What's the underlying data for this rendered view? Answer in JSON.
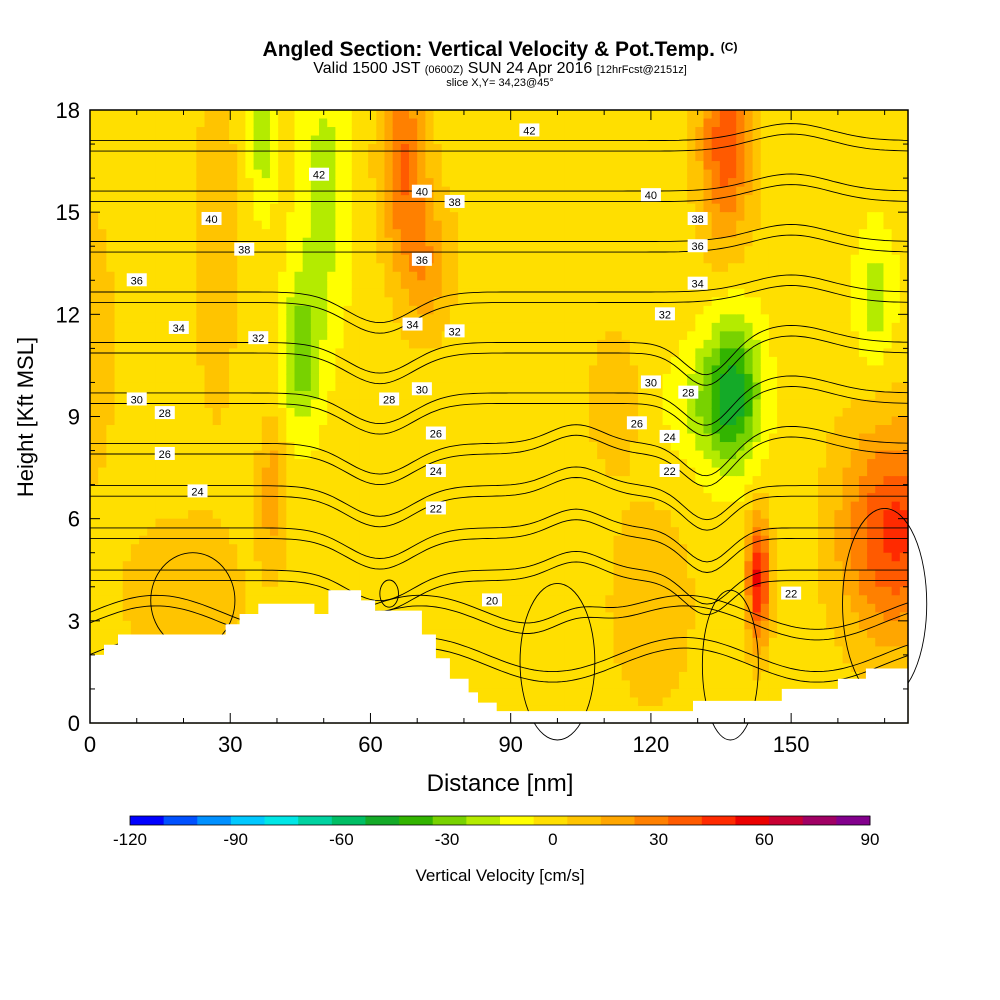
{
  "chart_data": {
    "type": "heatmap",
    "title": "Angled Section: Vertical Velocity & Pot.Temp.",
    "title_mark": "(C)",
    "subtitle_main_1": "Valid 1500 JST",
    "subtitle_small_1": "(0600Z)",
    "subtitle_main_2": "SUN 24 Apr 2016",
    "subtitle_small_2": "[12hrFcst@2151z]",
    "subtitle2": "slice X,Y= 34,23@45°",
    "xlabel": "Distance [nm]",
    "ylabel": "Height [Kft MSL]",
    "xlim": [
      0,
      175
    ],
    "ylim": [
      0,
      18
    ],
    "x_ticks": [
      0,
      30,
      60,
      90,
      120,
      150
    ],
    "y_ticks": [
      0,
      3,
      6,
      9,
      12,
      15,
      18
    ],
    "colorbar": {
      "label": "Vertical Velocity [cm/s]",
      "min": -120,
      "max": 90,
      "step": 10,
      "tick_labels": [
        -120,
        -90,
        -60,
        -30,
        0,
        30,
        60,
        90
      ],
      "colors": [
        "#0000ff",
        "#0050ff",
        "#0090ff",
        "#00c8ff",
        "#00e6e6",
        "#00d2a0",
        "#00be64",
        "#14aa28",
        "#32b400",
        "#78d200",
        "#b4eb00",
        "#ffff00",
        "#ffdf00",
        "#ffc400",
        "#ffa600",
        "#ff8000",
        "#ff5a00",
        "#ff2a00",
        "#eb0000",
        "#c80032",
        "#a00064",
        "#82008c"
      ]
    },
    "background_value": 5,
    "velocity_features": [
      {
        "x": 45,
        "y": 10.8,
        "sx": 3,
        "sy": 1.6,
        "v": -30
      },
      {
        "x": 50,
        "y": 15.5,
        "sx": 4,
        "sy": 3,
        "v": -20
      },
      {
        "x": 37,
        "y": 17.2,
        "sx": 2,
        "sy": 1.5,
        "v": -22
      },
      {
        "x": 138,
        "y": 9.8,
        "sx": 4,
        "sy": 1.6,
        "v": -38
      },
      {
        "x": 133,
        "y": 9.4,
        "sx": 6,
        "sy": 1.3,
        "v": -22
      },
      {
        "x": 168,
        "y": 12.5,
        "sx": 3,
        "sy": 1.5,
        "v": -20
      },
      {
        "x": 67,
        "y": 16.5,
        "sx": 3.5,
        "sy": 2,
        "v": 35
      },
      {
        "x": 72,
        "y": 13.5,
        "sx": 4,
        "sy": 1.5,
        "v": 22
      },
      {
        "x": 136,
        "y": 17,
        "sx": 4,
        "sy": 2,
        "v": 42
      },
      {
        "x": 27,
        "y": 14,
        "sx": 3,
        "sy": 3.5,
        "v": 15
      },
      {
        "x": 143,
        "y": 4.2,
        "sx": 1.7,
        "sy": 1.3,
        "v": 58
      },
      {
        "x": 172,
        "y": 5.6,
        "sx": 8,
        "sy": 2.2,
        "v": 48
      },
      {
        "x": 39,
        "y": 6.8,
        "sx": 2,
        "sy": 1.5,
        "v": 22
      },
      {
        "x": 20,
        "y": 3.8,
        "sx": 9,
        "sy": 1.6,
        "v": 14
      },
      {
        "x": 120,
        "y": 3.5,
        "sx": 6,
        "sy": 2,
        "v": 15
      },
      {
        "x": 0,
        "y": 11,
        "sx": 4,
        "sy": 3,
        "v": 12
      },
      {
        "x": 112,
        "y": 9.5,
        "sx": 4,
        "sy": 1.5,
        "v": 12
      }
    ],
    "terrain": [
      [
        0,
        2
      ],
      [
        3,
        2
      ],
      [
        3,
        2.3
      ],
      [
        6,
        2.3
      ],
      [
        6,
        2.6
      ],
      [
        10,
        2.6
      ],
      [
        10,
        2.6
      ],
      [
        29,
        2.6
      ],
      [
        29,
        2.9
      ],
      [
        32,
        2.9
      ],
      [
        32,
        3.2
      ],
      [
        36,
        3.2
      ],
      [
        36,
        3.5
      ],
      [
        48,
        3.5
      ],
      [
        48,
        3.2
      ],
      [
        51,
        3.2
      ],
      [
        51,
        3.9
      ],
      [
        58,
        3.9
      ],
      [
        58,
        3.6
      ],
      [
        61,
        3.6
      ],
      [
        61,
        3.3
      ],
      [
        71,
        3.3
      ],
      [
        71,
        2.6
      ],
      [
        74,
        2.6
      ],
      [
        74,
        1.9
      ],
      [
        77,
        1.9
      ],
      [
        77,
        1.3
      ],
      [
        81,
        1.3
      ],
      [
        81,
        0.9
      ],
      [
        83,
        0.9
      ],
      [
        83,
        0.6
      ],
      [
        87,
        0.6
      ],
      [
        87,
        0.35
      ],
      [
        129,
        0.35
      ],
      [
        129,
        0.65
      ],
      [
        148,
        0.65
      ],
      [
        148,
        1.0
      ],
      [
        160,
        1.0
      ],
      [
        160,
        1.3
      ],
      [
        166,
        1.3
      ],
      [
        166,
        1.6
      ],
      [
        175,
        1.6
      ]
    ],
    "theta_levels": [
      20,
      22,
      24,
      26,
      28,
      30,
      32,
      34,
      36,
      38,
      40,
      42
    ],
    "contour_labels": [
      {
        "text": "42",
        "x": 94,
        "y": 17.4
      },
      {
        "text": "42",
        "x": 49,
        "y": 16.1
      },
      {
        "text": "40",
        "x": 26,
        "y": 14.8
      },
      {
        "text": "40",
        "x": 71,
        "y": 15.6
      },
      {
        "text": "40",
        "x": 120,
        "y": 15.5
      },
      {
        "text": "38",
        "x": 33,
        "y": 13.9
      },
      {
        "text": "38",
        "x": 78,
        "y": 15.3
      },
      {
        "text": "38",
        "x": 130,
        "y": 14.8
      },
      {
        "text": "36",
        "x": 10,
        "y": 13.0
      },
      {
        "text": "36",
        "x": 71,
        "y": 13.6
      },
      {
        "text": "36",
        "x": 130,
        "y": 14.0
      },
      {
        "text": "34",
        "x": 19,
        "y": 11.6
      },
      {
        "text": "34",
        "x": 69,
        "y": 11.7
      },
      {
        "text": "34",
        "x": 130,
        "y": 12.9
      },
      {
        "text": "32",
        "x": 36,
        "y": 11.3
      },
      {
        "text": "32",
        "x": 78,
        "y": 11.5
      },
      {
        "text": "32",
        "x": 123,
        "y": 12.0
      },
      {
        "text": "30",
        "x": 10,
        "y": 9.5
      },
      {
        "text": "30",
        "x": 71,
        "y": 9.8
      },
      {
        "text": "30",
        "x": 120,
        "y": 10.0
      },
      {
        "text": "28",
        "x": 16,
        "y": 9.1
      },
      {
        "text": "28",
        "x": 64,
        "y": 9.5
      },
      {
        "text": "28",
        "x": 128,
        "y": 9.7
      },
      {
        "text": "26",
        "x": 16,
        "y": 7.9
      },
      {
        "text": "26",
        "x": 74,
        "y": 8.5
      },
      {
        "text": "26",
        "x": 117,
        "y": 8.8
      },
      {
        "text": "24",
        "x": 23,
        "y": 6.8
      },
      {
        "text": "24",
        "x": 74,
        "y": 7.4
      },
      {
        "text": "24",
        "x": 124,
        "y": 8.4
      },
      {
        "text": "22",
        "x": 74,
        "y": 6.3
      },
      {
        "text": "22",
        "x": 124,
        "y": 7.4
      },
      {
        "text": "22",
        "x": 150,
        "y": 3.8
      },
      {
        "text": "20",
        "x": 86,
        "y": 3.6
      }
    ],
    "grid": false
  }
}
